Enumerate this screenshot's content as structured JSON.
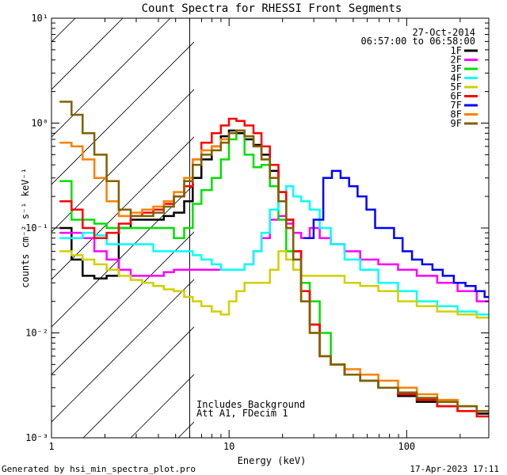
{
  "chart_data": {
    "type": "line",
    "title": "Count Spectra for RHESSI Front Segments",
    "xlabel": "Energy (keV)",
    "ylabel": "counts cm⁻² s⁻¹ keV⁻¹",
    "xscale": "log",
    "yscale": "log",
    "xlim": [
      1,
      290
    ],
    "ylim": [
      0.001,
      10
    ],
    "x_tick_labels": [
      {
        "value": 1,
        "label": "1"
      },
      {
        "value": 10,
        "label": "10"
      },
      {
        "value": 100,
        "label": "100"
      }
    ],
    "y_tick_labels": [
      {
        "value": 0.001,
        "label": "10⁻³"
      },
      {
        "value": 0.01,
        "label": "10⁻²"
      },
      {
        "value": 0.1,
        "label": "10⁻¹"
      },
      {
        "value": 1,
        "label": "10⁰"
      },
      {
        "value": 10,
        "label": "10¹"
      }
    ],
    "date": "27-Oct-2014",
    "time_range": "06:57:00 to 06:58:00",
    "hatched_region_xmax": 6,
    "annotations": [
      "Includes Background",
      "Att A1, FDecim 1"
    ],
    "series": [
      {
        "name": "1F",
        "color": "#000000",
        "x": [
          1.2,
          1.4,
          1.6,
          1.9,
          2.2,
          2.6,
          3,
          3.5,
          4,
          4.6,
          5.2,
          6,
          6.5,
          7.5,
          8.5,
          9.5,
          10.5,
          11.5,
          13,
          14.5,
          16,
          18,
          20,
          22,
          24,
          27,
          30,
          35,
          40,
          50,
          60,
          80,
          100,
          130,
          170,
          220,
          280
        ],
        "y": [
          0.1,
          0.05,
          0.035,
          0.033,
          0.035,
          0.1,
          0.12,
          0.12,
          0.12,
          0.13,
          0.14,
          0.18,
          0.3,
          0.45,
          0.6,
          0.75,
          0.85,
          0.8,
          0.7,
          0.62,
          0.5,
          0.35,
          0.22,
          0.12,
          0.06,
          0.025,
          0.012,
          0.006,
          0.005,
          0.004,
          0.0035,
          0.003,
          0.0025,
          0.0022,
          0.002,
          0.0018,
          0.0017
        ]
      },
      {
        "name": "2F",
        "color": "#ff00ff",
        "x": [
          1.2,
          1.4,
          1.6,
          1.9,
          2.2,
          2.6,
          3,
          3.5,
          4,
          4.6,
          5.2,
          6,
          6.5,
          7.5,
          8.5,
          9.5,
          10.5,
          11.5,
          13,
          14.5,
          16,
          18,
          20,
          22,
          24,
          27,
          30,
          35,
          40,
          50,
          60,
          80,
          100,
          130,
          170,
          220,
          280
        ],
        "y": [
          0.09,
          0.09,
          0.08,
          0.06,
          0.05,
          0.04,
          0.035,
          0.035,
          0.035,
          0.038,
          0.04,
          0.04,
          0.04,
          0.04,
          0.04,
          0.04,
          0.04,
          0.04,
          0.045,
          0.06,
          0.08,
          0.12,
          0.13,
          0.11,
          0.09,
          0.08,
          0.1,
          0.08,
          0.07,
          0.06,
          0.05,
          0.045,
          0.04,
          0.035,
          0.03,
          0.025,
          0.02
        ]
      },
      {
        "name": "3F",
        "color": "#00e000",
        "x": [
          1.2,
          1.4,
          1.6,
          1.9,
          2.2,
          2.6,
          3,
          3.5,
          4,
          4.6,
          5.2,
          6,
          6.5,
          7.5,
          8.5,
          9.5,
          10.5,
          11.5,
          13,
          14.5,
          16,
          18,
          20,
          22,
          24,
          27,
          30,
          35,
          40,
          50,
          60,
          80,
          100,
          130,
          170,
          220,
          280
        ],
        "y": [
          0.28,
          0.12,
          0.12,
          0.11,
          0.1,
          0.1,
          0.1,
          0.1,
          0.1,
          0.1,
          0.08,
          0.1,
          0.17,
          0.23,
          0.3,
          0.45,
          0.7,
          0.85,
          0.5,
          0.38,
          0.4,
          0.25,
          0.12,
          0.06,
          0.04,
          0.03,
          0.02,
          0.01,
          0.005,
          0.004,
          0.0035,
          0.003,
          0.0027,
          0.0024,
          0.0022,
          0.002,
          0.0018
        ]
      },
      {
        "name": "4F",
        "color": "#00ffff",
        "x": [
          1.2,
          1.4,
          1.6,
          1.9,
          2.2,
          2.6,
          3,
          3.5,
          4,
          4.6,
          5.2,
          6,
          6.5,
          7.5,
          8.5,
          9.5,
          10.5,
          11.5,
          13,
          14.5,
          16,
          18,
          20,
          22,
          24,
          27,
          30,
          35,
          40,
          50,
          60,
          80,
          100,
          130,
          170,
          220,
          280
        ],
        "y": [
          0.08,
          0.08,
          0.09,
          0.085,
          0.07,
          0.07,
          0.07,
          0.07,
          0.06,
          0.06,
          0.06,
          0.06,
          0.055,
          0.05,
          0.045,
          0.04,
          0.04,
          0.04,
          0.045,
          0.06,
          0.09,
          0.15,
          0.22,
          0.25,
          0.2,
          0.18,
          0.15,
          0.1,
          0.07,
          0.05,
          0.04,
          0.03,
          0.025,
          0.02,
          0.018,
          0.016,
          0.015
        ]
      },
      {
        "name": "5F",
        "color": "#d0d000",
        "x": [
          1.2,
          1.4,
          1.6,
          1.9,
          2.2,
          2.6,
          3,
          3.5,
          4,
          4.6,
          5.2,
          6,
          6.5,
          7.5,
          8.5,
          9.5,
          10.5,
          11.5,
          13,
          14.5,
          16,
          18,
          20,
          22,
          24,
          27,
          30,
          35,
          40,
          50,
          60,
          80,
          100,
          130,
          170,
          220,
          280
        ],
        "y": [
          0.06,
          0.055,
          0.05,
          0.045,
          0.04,
          0.035,
          0.032,
          0.03,
          0.028,
          0.026,
          0.025,
          0.022,
          0.02,
          0.018,
          0.016,
          0.015,
          0.02,
          0.025,
          0.03,
          0.03,
          0.03,
          0.04,
          0.06,
          0.05,
          0.04,
          0.035,
          0.035,
          0.035,
          0.035,
          0.03,
          0.028,
          0.025,
          0.02,
          0.018,
          0.016,
          0.015,
          0.014
        ]
      },
      {
        "name": "6F",
        "color": "#ff0000",
        "x": [
          1.2,
          1.4,
          1.6,
          1.9,
          2.2,
          2.6,
          3,
          3.5,
          4,
          4.6,
          5.2,
          6,
          6.5,
          7.5,
          8.5,
          9.5,
          10.5,
          11.5,
          13,
          14.5,
          16,
          18,
          20,
          22,
          24,
          27,
          30,
          35,
          40,
          50,
          60,
          80,
          100,
          130,
          170,
          220,
          280
        ],
        "y": [
          0.18,
          0.15,
          0.1,
          0.08,
          0.09,
          0.11,
          0.13,
          0.14,
          0.15,
          0.17,
          0.2,
          0.25,
          0.45,
          0.65,
          0.8,
          0.95,
          1.1,
          1.05,
          0.95,
          0.8,
          0.6,
          0.4,
          0.22,
          0.12,
          0.06,
          0.025,
          0.012,
          0.006,
          0.005,
          0.004,
          0.0035,
          0.003,
          0.0026,
          0.0023,
          0.002,
          0.0018,
          0.0016
        ]
      },
      {
        "name": "7F",
        "color": "#0000ff",
        "x": [
          28,
          32,
          36,
          40,
          45,
          50,
          56,
          63,
          70,
          80,
          90,
          100,
          115,
          130,
          150,
          170,
          200,
          230,
          260,
          290
        ],
        "y": [
          0.08,
          0.12,
          0.3,
          0.35,
          0.3,
          0.25,
          0.2,
          0.15,
          0.1,
          0.1,
          0.08,
          0.06,
          0.05,
          0.045,
          0.04,
          0.035,
          0.03,
          0.028,
          0.025,
          0.022
        ]
      },
      {
        "name": "8F",
        "color": "#ff8000",
        "x": [
          1.2,
          1.4,
          1.6,
          1.9,
          2.2,
          2.6,
          3,
          3.5,
          4,
          4.6,
          5.2,
          6,
          6.5,
          7.5,
          8.5,
          9.5,
          10.5,
          11.5,
          13,
          14.5,
          16,
          18,
          20,
          22,
          24,
          27,
          30,
          35,
          40,
          50,
          60,
          80,
          100,
          130,
          170,
          220,
          280
        ],
        "y": [
          0.65,
          0.6,
          0.45,
          0.3,
          0.18,
          0.13,
          0.14,
          0.15,
          0.16,
          0.18,
          0.22,
          0.3,
          0.45,
          0.55,
          0.6,
          0.7,
          0.8,
          0.85,
          0.75,
          0.6,
          0.45,
          0.3,
          0.18,
          0.1,
          0.05,
          0.02,
          0.01,
          0.006,
          0.005,
          0.0045,
          0.004,
          0.0035,
          0.003,
          0.0026,
          0.0023,
          0.002,
          0.0018
        ]
      },
      {
        "name": "9F",
        "color": "#806000",
        "x": [
          1.2,
          1.4,
          1.6,
          1.9,
          2.2,
          2.6,
          3,
          3.5,
          4,
          4.6,
          5.2,
          6,
          6.5,
          7.5,
          8.5,
          9.5,
          10.5,
          11.5,
          13,
          14.5,
          16,
          18,
          20,
          22,
          24,
          27,
          30,
          35,
          40,
          50,
          60,
          80,
          100,
          130,
          170,
          220,
          280
        ],
        "y": [
          1.6,
          1.2,
          0.8,
          0.5,
          0.28,
          0.15,
          0.13,
          0.13,
          0.14,
          0.16,
          0.2,
          0.28,
          0.4,
          0.5,
          0.55,
          0.65,
          0.8,
          0.85,
          0.75,
          0.6,
          0.45,
          0.3,
          0.18,
          0.1,
          0.05,
          0.02,
          0.01,
          0.006,
          0.005,
          0.004,
          0.0035,
          0.003,
          0.0027,
          0.0024,
          0.0022,
          0.002,
          0.0018
        ]
      }
    ]
  },
  "footer": {
    "left": "Generated by hsi_min_spectra_plot.pro",
    "right": "17-Apr-2023 17:11"
  }
}
